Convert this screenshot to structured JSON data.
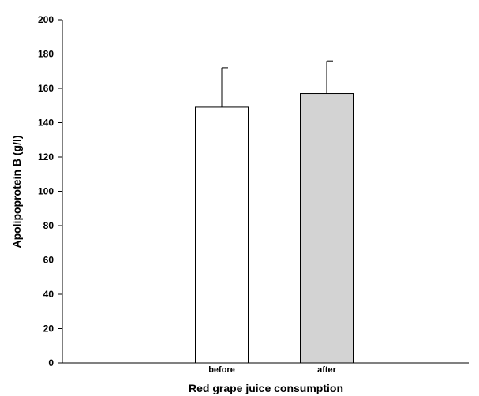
{
  "chart_data": {
    "type": "bar",
    "title": "",
    "xlabel": "Red grape juice consumption",
    "ylabel": "Apolipoprotein B (g/l)",
    "categories": [
      "before",
      "after"
    ],
    "values": [
      149,
      157
    ],
    "error_bars_upper": [
      172,
      176
    ],
    "bar_colors": [
      "#ffffff",
      "#d3d3d3"
    ],
    "ylim": [
      0,
      200
    ],
    "yticks": [
      0,
      20,
      40,
      60,
      80,
      100,
      120,
      140,
      160,
      180,
      200
    ],
    "grid": false,
    "legend": "none"
  }
}
